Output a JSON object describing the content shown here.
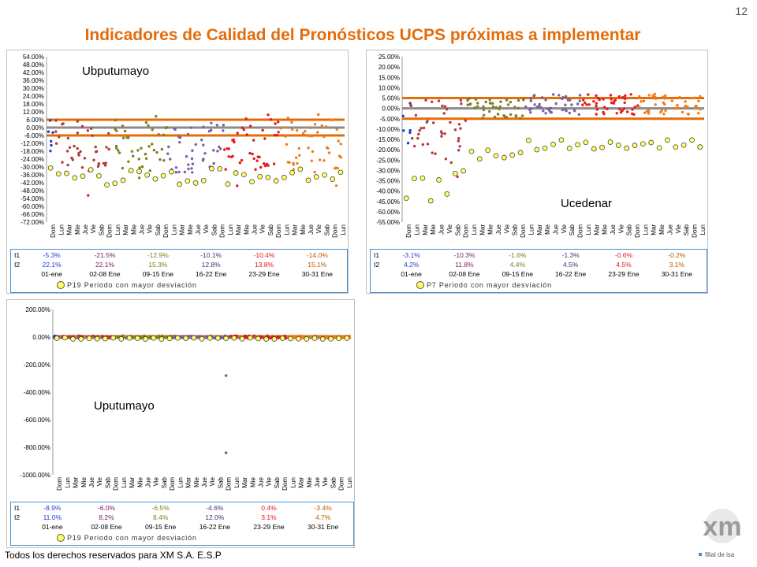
{
  "page_number": "12",
  "title": "Indicadores de Calidad del Pronósticos UCPS próximas a implementar",
  "footer": "Todos los derechos reservados para XM S.A. E.S.P",
  "logo": {
    "text": "xm",
    "subtext": "filial de isa",
    "color": "#9b9b9b"
  },
  "day_labels": [
    "Dom",
    "Lun",
    "Mar",
    "Mie",
    "Jue",
    "Vie",
    "Sab",
    "Dom",
    "Lun",
    "Mar",
    "Mie",
    "Jue",
    "Vie",
    "Sab",
    "Dom",
    "Lun",
    "Mar",
    "Mie",
    "Jue",
    "Vie",
    "Sab",
    "Dom",
    "Lun",
    "Mar",
    "Mie",
    "Jue",
    "Vie",
    "Sab",
    "Dom",
    "Lun",
    "Mar",
    "Mie",
    "Jue",
    "Vie",
    "Sab",
    "Dom",
    "Lun"
  ],
  "colors": {
    "title": "#e46c0a",
    "band": "#e46c0a",
    "gray_line": "#8c8c8c",
    "period_colors": [
      "#1f3fd6",
      "#b43a3a",
      "#7f7f20",
      "#7b5fa8",
      "#e81818",
      "#f07c1c"
    ]
  },
  "chart_data": [
    {
      "type": "scatter",
      "title": "Ubputumayo",
      "y_ticks": [
        "54.00%",
        "48.00%",
        "42.00%",
        "36.00%",
        "30.00%",
        "24.00%",
        "18.00%",
        "12.00%",
        "6.00%",
        "0.00%",
        "-6.00%",
        "-12.00%",
        "-18.00%",
        "-24.00%",
        "-30.00%",
        "-36.00%",
        "-42.00%",
        "-48.00%",
        "-54.00%",
        "-60.00%",
        "-66.00%",
        "-72.00%"
      ],
      "ylim": [
        -72,
        54
      ],
      "band": [
        -6,
        6
      ],
      "series_count": 6,
      "table": {
        "row_labels": [
          "I1",
          "I2"
        ],
        "I1": [
          "-5.3%",
          "-21.5%",
          "-12.9%",
          "-10.1%",
          "-10.4%",
          "-14.0%"
        ],
        "I2": [
          "22.1%",
          "22.1%",
          "15.3%",
          "12.8%",
          "13.8%",
          "15.1%"
        ],
        "periods": [
          "01-ene",
          "02-08 Ene",
          "09-15 Ene",
          "16-22 Ene",
          "23-29 Ene",
          "30-31 Ene"
        ]
      },
      "legend": "P19  Periodo con mayor desviación"
    },
    {
      "type": "scatter",
      "title": "Ucedenar",
      "y_ticks": [
        "25.00%",
        "20.00%",
        "15.00%",
        "10.00%",
        "5.00%",
        "0.00%",
        "-5.00%",
        "-10.00%",
        "-15.00%",
        "-20.00%",
        "-25.00%",
        "-30.00%",
        "-35.00%",
        "-40.00%",
        "-45.00%",
        "-50.00%",
        "-55.00%"
      ],
      "ylim": [
        -55,
        25
      ],
      "band": [
        -5,
        5
      ],
      "series_count": 6,
      "table": {
        "row_labels": [
          "I1",
          "I2"
        ],
        "I1": [
          "-3.1%",
          "-10.3%",
          "-1.6%",
          "-1.3%",
          "-0.6%",
          "-0.2%"
        ],
        "I2": [
          "4.2%",
          "11.8%",
          "4.4%",
          "4.5%",
          "4.5%",
          "3.1%"
        ],
        "periods": [
          "01-ene",
          "02-08 Ene",
          "09-15 Ene",
          "16-22 Ene",
          "23-29 Ene",
          "30-31 Ene"
        ]
      },
      "legend": "P7  Periodo con mayor desviación"
    },
    {
      "type": "scatter",
      "title": "Uputumayo",
      "y_ticks": [
        "200.00%",
        "0.00%",
        "-200.00%",
        "-400.00%",
        "-600.00%",
        "-800.00%",
        "-1000.00%"
      ],
      "ylim": [
        -1000,
        200
      ],
      "band": [
        -6,
        6
      ],
      "series_count": 6,
      "table": {
        "row_labels": [
          "I1",
          "I2"
        ],
        "I1": [
          "-8.9%",
          "-6.0%",
          "-6.5%",
          "-4.6%",
          "0.4%",
          "-3.4%"
        ],
        "I2": [
          "11.0%",
          "8.2%",
          "8.4%",
          "12.0%",
          "3.1%",
          "4.7%"
        ],
        "periods": [
          "01-ene",
          "02-08 Ene",
          "09-15 Ene",
          "16-22 Ene",
          "23-29 Ene",
          "30-31 Ene"
        ]
      },
      "legend": "P19  Periodo con mayor desviación"
    }
  ]
}
